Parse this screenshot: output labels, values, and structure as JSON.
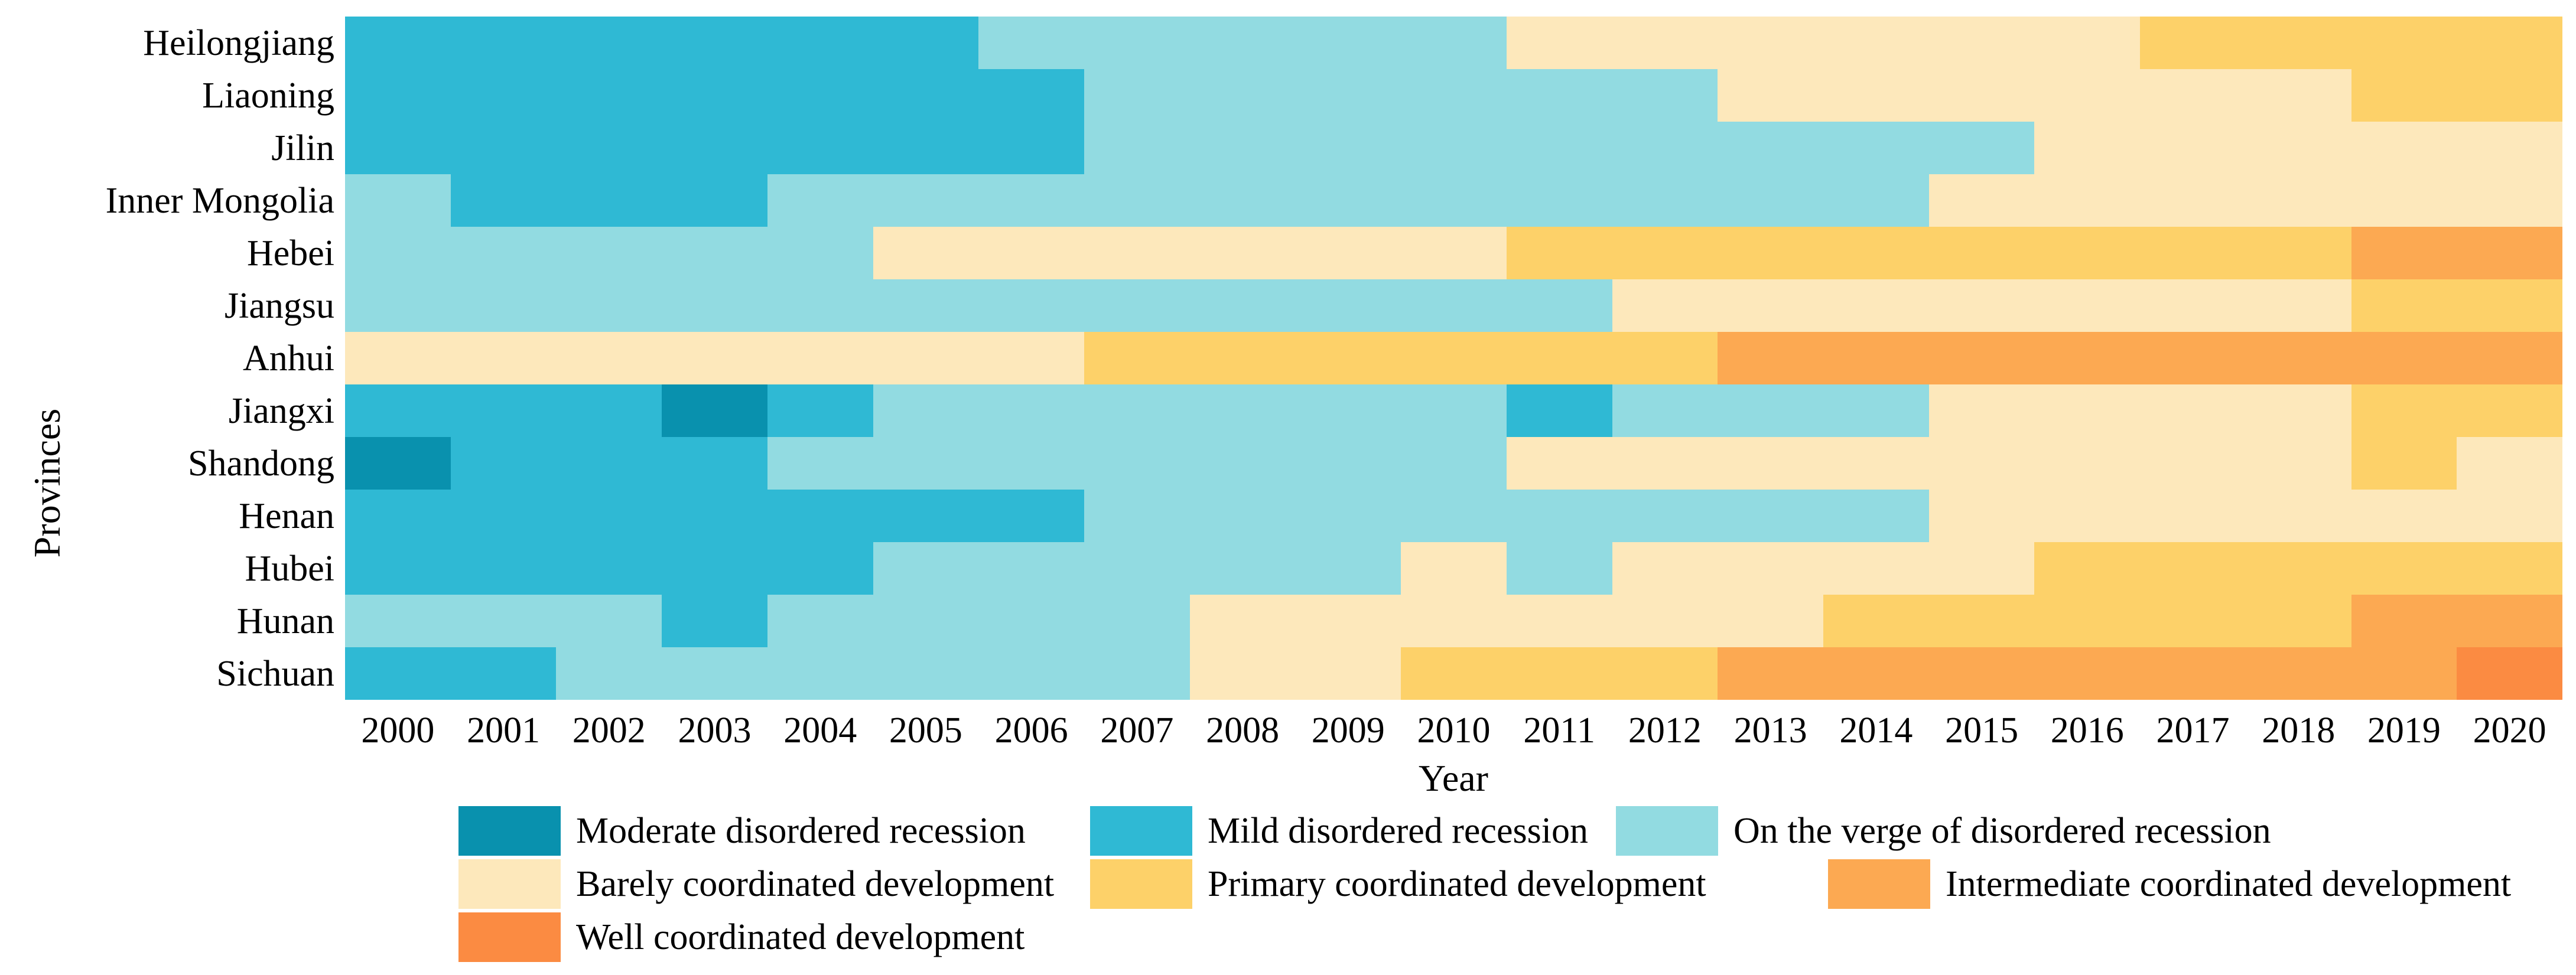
{
  "figure": {
    "xlabel": "Year",
    "ylabel": "Provinces"
  },
  "chart_data": {
    "type": "heatmap",
    "title": "",
    "xlabel": "Year",
    "ylabel": "Provinces",
    "legend_position": "below",
    "grid": false,
    "x": [
      2000,
      2001,
      2002,
      2003,
      2004,
      2005,
      2006,
      2007,
      2008,
      2009,
      2010,
      2011,
      2012,
      2013,
      2014,
      2015,
      2016,
      2017,
      2018,
      2019,
      2020
    ],
    "provinces": [
      "Heilongjiang",
      "Liaoning",
      "Jilin",
      "Inner Mongolia",
      "Hebei",
      "Jiangsu",
      "Anhui",
      "Jiangxi",
      "Shandong",
      "Henan",
      "Hubei",
      "Hunan",
      "Sichuan"
    ],
    "levels": [
      {
        "code": "M",
        "label": "Moderate disordered recession",
        "color": "#0991AE"
      },
      {
        "code": "D",
        "label": "Mild disordered recession",
        "color": "#2FB9D4"
      },
      {
        "code": "V",
        "label": "On the verge of disordered recession",
        "color": "#92DBE1"
      },
      {
        "code": "B",
        "label": "Barely coordinated development",
        "color": "#FDE8BB"
      },
      {
        "code": "P",
        "label": "Primary coordinated development",
        "color": "#FDD169"
      },
      {
        "code": "I",
        "label": "Intermediate coordinated development",
        "color": "#FCA952"
      },
      {
        "code": "W",
        "label": "Well coordinated development",
        "color": "#FB8B42"
      }
    ],
    "series": [
      {
        "province": "Heilongjiang",
        "codes": "DDDDDDVVVVVBBBBBBPPPP"
      },
      {
        "province": "Liaoning",
        "codes": "DDDDDDDVVVVVVBBBBBBPP"
      },
      {
        "province": "Jilin",
        "codes": "DDDDDDDVVVVVVVVVBBBBB"
      },
      {
        "province": "Inner Mongolia",
        "codes": "VDDDVVVVVVVVVVVBBBBBB"
      },
      {
        "province": "Hebei",
        "codes": "VVVVVBBBBBBPPPPPPPPII"
      },
      {
        "province": "Jiangsu",
        "codes": "VVVVVVVVVVVVBBBBBBBPP"
      },
      {
        "province": "Anhui",
        "codes": "BBBBBBBPPPPPPIIIIIIII"
      },
      {
        "province": "Jiangxi",
        "codes": "DDDMDVVVVVVDVVVBBBBPP"
      },
      {
        "province": "Shandong",
        "codes": "MDDDVVVVVVVBBBBBBBBPB"
      },
      {
        "province": "Henan",
        "codes": "DDDDDDDVVVVVVVVBBBBBB"
      },
      {
        "province": "Hubei",
        "codes": "DDDDDVVVVVBVBBBBPPPPP"
      },
      {
        "province": "Hunan",
        "codes": "VVVDVVVVBBBBBBPPPPPII"
      },
      {
        "province": "Sichuan",
        "codes": "DDVVVVVVBBPPPIIIIIIIW"
      }
    ]
  }
}
